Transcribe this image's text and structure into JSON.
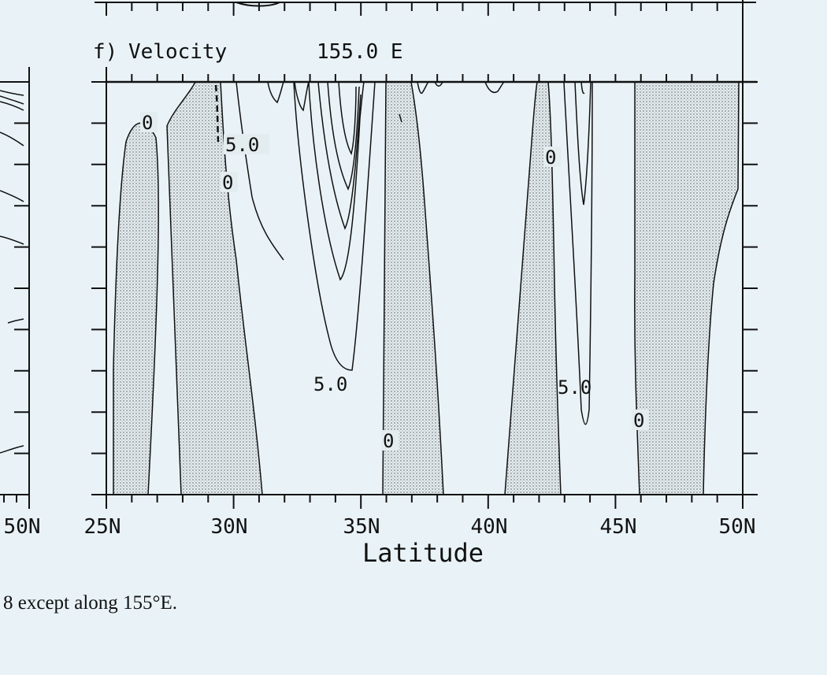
{
  "panel": {
    "label": "f)",
    "variable": "Velocity",
    "section": "155.0 E"
  },
  "axis": {
    "xlabel": "Latitude",
    "left_panel_tick": "50N",
    "ticks": [
      "25N",
      "30N",
      "35N",
      "40N",
      "45N",
      "50N"
    ]
  },
  "contour_labels": [
    {
      "text": "0"
    },
    {
      "text": "5.0"
    },
    {
      "text": "0"
    },
    {
      "text": "5.0"
    },
    {
      "text": "0"
    },
    {
      "text": "0"
    },
    {
      "text": "5.0"
    },
    {
      "text": "0"
    }
  ],
  "caption": "8 except along 155°E.",
  "colors": {
    "background": "#e9f3f7",
    "ink": "#111111",
    "stipple": "#8a8f93"
  }
}
